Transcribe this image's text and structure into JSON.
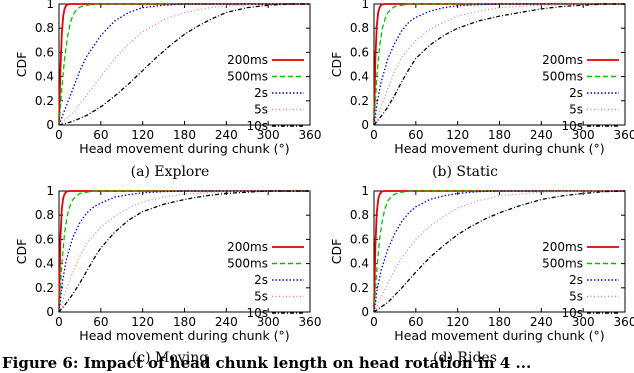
{
  "figure": {
    "caption_fragment": "Figure 6: Impact of head chunk length on head rotation in 4 ..."
  },
  "chart_data": [
    {
      "type": "line",
      "panel_caption": "(a)  Explore",
      "xlabel": "Head movement during chunk (°)",
      "ylabel": "CDF",
      "xlim": [
        0,
        360
      ],
      "ylim": [
        0,
        1
      ],
      "xticks": [
        "0",
        "60",
        "120",
        "180",
        "240",
        "300",
        "360"
      ],
      "yticks": [
        "0",
        "0.2",
        "0.4",
        "0.6",
        "0.8",
        "1"
      ],
      "grid": false,
      "legend_position": "right-center",
      "series": [
        {
          "name": "200ms",
          "color": "#e00000",
          "dash": "",
          "x": [
            0,
            2,
            4,
            6,
            8,
            10,
            12,
            15,
            360
          ],
          "y": [
            0,
            0.45,
            0.75,
            0.9,
            0.96,
            0.985,
            0.995,
            1,
            1
          ]
        },
        {
          "name": "500ms",
          "color": "#00c000",
          "dash": "5,3",
          "x": [
            0,
            4,
            8,
            12,
            16,
            20,
            25,
            30,
            40,
            50,
            360
          ],
          "y": [
            0,
            0.3,
            0.55,
            0.72,
            0.84,
            0.91,
            0.95,
            0.975,
            0.99,
            1,
            1
          ]
        },
        {
          "name": "2s",
          "color": "#0000d0",
          "dash": "1.5,2",
          "x": [
            0,
            10,
            20,
            30,
            40,
            60,
            80,
            100,
            120,
            150,
            180,
            360
          ],
          "y": [
            0,
            0.15,
            0.3,
            0.45,
            0.57,
            0.74,
            0.86,
            0.93,
            0.97,
            0.99,
            1,
            1
          ]
        },
        {
          "name": "5s",
          "color": "#f08080",
          "dash": "1,2.5",
          "x": [
            0,
            20,
            40,
            60,
            80,
            100,
            120,
            150,
            180,
            210,
            240,
            300,
            360
          ],
          "y": [
            0,
            0.1,
            0.25,
            0.4,
            0.55,
            0.67,
            0.77,
            0.87,
            0.93,
            0.965,
            0.985,
            1,
            1
          ]
        },
        {
          "name": "10s",
          "color": "#000000",
          "dash": "4,2,1,2",
          "x": [
            0,
            20,
            40,
            60,
            80,
            100,
            120,
            140,
            160,
            180,
            200,
            220,
            240,
            270,
            300,
            330,
            360
          ],
          "y": [
            0,
            0.03,
            0.08,
            0.15,
            0.24,
            0.34,
            0.45,
            0.56,
            0.66,
            0.75,
            0.82,
            0.88,
            0.93,
            0.97,
            0.99,
            1,
            1
          ]
        }
      ]
    },
    {
      "type": "line",
      "panel_caption": "(b)  Static",
      "xlabel": "Head movement during chunk (°)",
      "ylabel": "CDF",
      "xlim": [
        0,
        360
      ],
      "ylim": [
        0,
        1
      ],
      "xticks": [
        "0",
        "60",
        "120",
        "180",
        "240",
        "300",
        "360"
      ],
      "yticks": [
        "0",
        "0.2",
        "0.4",
        "0.6",
        "0.8",
        "1"
      ],
      "grid": false,
      "legend_position": "right-center",
      "series": [
        {
          "name": "200ms",
          "color": "#e00000",
          "dash": "",
          "x": [
            0,
            2,
            4,
            6,
            8,
            10,
            12,
            15,
            360
          ],
          "y": [
            0,
            0.55,
            0.82,
            0.93,
            0.97,
            0.99,
            0.997,
            1,
            1
          ]
        },
        {
          "name": "500ms",
          "color": "#00c000",
          "dash": "5,3",
          "x": [
            0,
            4,
            8,
            12,
            16,
            20,
            25,
            30,
            40,
            50,
            360
          ],
          "y": [
            0,
            0.4,
            0.65,
            0.8,
            0.88,
            0.93,
            0.96,
            0.98,
            0.99,
            1,
            1
          ]
        },
        {
          "name": "2s",
          "color": "#0000d0",
          "dash": "1.5,2",
          "x": [
            0,
            5,
            10,
            20,
            30,
            40,
            50,
            60,
            80,
            100,
            120,
            150,
            180,
            360
          ],
          "y": [
            0,
            0.2,
            0.35,
            0.55,
            0.68,
            0.78,
            0.85,
            0.89,
            0.94,
            0.97,
            0.985,
            0.995,
            1,
            1
          ]
        },
        {
          "name": "5s",
          "color": "#f08080",
          "dash": "1,2.5",
          "x": [
            0,
            10,
            20,
            30,
            40,
            60,
            80,
            100,
            120,
            150,
            180,
            240,
            300,
            360
          ],
          "y": [
            0,
            0.15,
            0.3,
            0.45,
            0.56,
            0.7,
            0.79,
            0.85,
            0.9,
            0.94,
            0.97,
            0.99,
            1,
            1
          ]
        },
        {
          "name": "10s",
          "color": "#000000",
          "dash": "4,2,1,2",
          "x": [
            0,
            10,
            20,
            30,
            40,
            50,
            60,
            80,
            100,
            120,
            150,
            180,
            210,
            240,
            270,
            300,
            330,
            360
          ],
          "y": [
            0,
            0.07,
            0.15,
            0.25,
            0.36,
            0.46,
            0.55,
            0.66,
            0.74,
            0.8,
            0.86,
            0.9,
            0.93,
            0.96,
            0.98,
            0.99,
            1,
            1
          ]
        }
      ]
    },
    {
      "type": "line",
      "panel_caption": "(c)  Moving",
      "xlabel": "Head movement during chunk (°)",
      "ylabel": "CDF",
      "xlim": [
        0,
        360
      ],
      "ylim": [
        0,
        1
      ],
      "xticks": [
        "0",
        "60",
        "120",
        "180",
        "240",
        "300",
        "360"
      ],
      "yticks": [
        "0",
        "0.2",
        "0.4",
        "0.6",
        "0.8",
        "1"
      ],
      "grid": false,
      "legend_position": "right-center",
      "series": [
        {
          "name": "200ms",
          "color": "#e00000",
          "dash": "",
          "x": [
            0,
            2,
            4,
            6,
            8,
            10,
            12,
            15,
            360
          ],
          "y": [
            0,
            0.6,
            0.85,
            0.94,
            0.975,
            0.99,
            0.997,
            1,
            1
          ]
        },
        {
          "name": "500ms",
          "color": "#00c000",
          "dash": "5,3",
          "x": [
            0,
            4,
            8,
            12,
            16,
            20,
            25,
            30,
            40,
            50,
            360
          ],
          "y": [
            0,
            0.4,
            0.65,
            0.8,
            0.88,
            0.93,
            0.96,
            0.98,
            0.99,
            1,
            1
          ]
        },
        {
          "name": "2s",
          "color": "#0000d0",
          "dash": "1.5,2",
          "x": [
            0,
            5,
            10,
            20,
            30,
            40,
            50,
            60,
            80,
            100,
            120,
            150,
            180,
            360
          ],
          "y": [
            0,
            0.25,
            0.42,
            0.62,
            0.74,
            0.82,
            0.87,
            0.9,
            0.95,
            0.97,
            0.985,
            0.995,
            1,
            1
          ]
        },
        {
          "name": "5s",
          "color": "#f08080",
          "dash": "1,2.5",
          "x": [
            0,
            10,
            20,
            30,
            40,
            60,
            80,
            100,
            120,
            150,
            180,
            240,
            300,
            360
          ],
          "y": [
            0,
            0.18,
            0.33,
            0.46,
            0.57,
            0.7,
            0.79,
            0.86,
            0.91,
            0.95,
            0.975,
            0.995,
            1,
            1
          ]
        },
        {
          "name": "10s",
          "color": "#000000",
          "dash": "4,2,1,2",
          "x": [
            0,
            10,
            20,
            30,
            40,
            50,
            60,
            80,
            100,
            120,
            150,
            180,
            210,
            240,
            270,
            300,
            360
          ],
          "y": [
            0,
            0.07,
            0.15,
            0.24,
            0.34,
            0.44,
            0.53,
            0.66,
            0.76,
            0.83,
            0.89,
            0.93,
            0.96,
            0.98,
            0.99,
            1,
            1
          ]
        }
      ]
    },
    {
      "type": "line",
      "panel_caption": "(d)  Rides",
      "xlabel": "Head movement during chunk (°)",
      "ylabel": "CDF",
      "xlim": [
        0,
        360
      ],
      "ylim": [
        0,
        1
      ],
      "xticks": [
        "0",
        "60",
        "120",
        "180",
        "240",
        "300",
        "360"
      ],
      "yticks": [
        "0",
        "0.2",
        "0.4",
        "0.6",
        "0.8",
        "1"
      ],
      "grid": false,
      "legend_position": "right-center",
      "series": [
        {
          "name": "200ms",
          "color": "#e00000",
          "dash": "",
          "x": [
            0,
            2,
            4,
            6,
            8,
            10,
            12,
            15,
            360
          ],
          "y": [
            0,
            0.55,
            0.82,
            0.93,
            0.97,
            0.99,
            0.997,
            1,
            1
          ]
        },
        {
          "name": "500ms",
          "color": "#00c000",
          "dash": "5,3",
          "x": [
            0,
            4,
            8,
            12,
            16,
            20,
            25,
            30,
            40,
            50,
            360
          ],
          "y": [
            0,
            0.35,
            0.6,
            0.76,
            0.86,
            0.92,
            0.955,
            0.975,
            0.99,
            1,
            1
          ]
        },
        {
          "name": "2s",
          "color": "#0000d0",
          "dash": "1.5,2",
          "x": [
            0,
            5,
            10,
            20,
            30,
            40,
            50,
            60,
            80,
            100,
            120,
            150,
            180,
            360
          ],
          "y": [
            0,
            0.2,
            0.34,
            0.52,
            0.65,
            0.75,
            0.82,
            0.87,
            0.93,
            0.96,
            0.98,
            0.995,
            1,
            1
          ]
        },
        {
          "name": "5s",
          "color": "#f08080",
          "dash": "1,2.5",
          "x": [
            0,
            10,
            20,
            30,
            40,
            60,
            80,
            100,
            120,
            150,
            180,
            240,
            300,
            360
          ],
          "y": [
            0,
            0.12,
            0.24,
            0.35,
            0.45,
            0.6,
            0.71,
            0.79,
            0.86,
            0.92,
            0.96,
            0.99,
            1,
            1
          ]
        },
        {
          "name": "10s",
          "color": "#000000",
          "dash": "4,2,1,2",
          "x": [
            0,
            20,
            40,
            60,
            80,
            100,
            120,
            140,
            160,
            180,
            210,
            240,
            270,
            300,
            330,
            360
          ],
          "y": [
            0,
            0.08,
            0.2,
            0.33,
            0.45,
            0.55,
            0.64,
            0.71,
            0.77,
            0.82,
            0.88,
            0.93,
            0.96,
            0.98,
            0.995,
            1
          ]
        }
      ]
    }
  ]
}
